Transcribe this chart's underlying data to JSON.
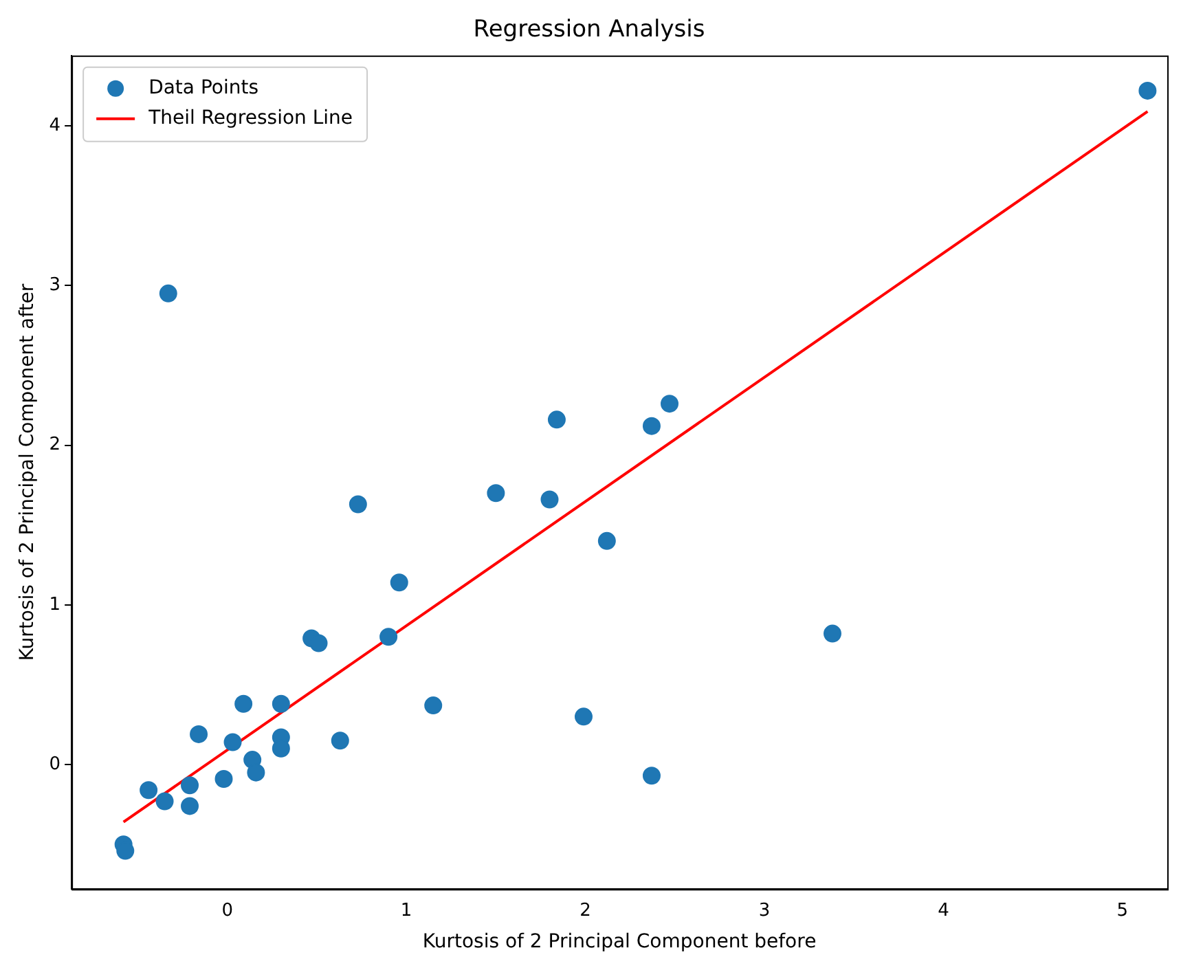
{
  "chart_data": {
    "type": "scatter",
    "title": "Regression Analysis",
    "xlabel": "Kurtosis of 2 Principal Component before",
    "ylabel": "Kurtosis of 2 Principal Component after",
    "xlim": [
      -0.87,
      5.25
    ],
    "ylim": [
      -0.78,
      4.44
    ],
    "xticks": [
      0,
      1,
      2,
      3,
      4,
      5
    ],
    "yticks": [
      0,
      1,
      2,
      3,
      4
    ],
    "grid": false,
    "legend": "top left",
    "series": [
      {
        "name": "Data Points",
        "type": "scatter",
        "color": "#1f77b4",
        "marker": "circle",
        "x": [
          -0.58,
          -0.57,
          -0.44,
          -0.35,
          -0.33,
          -0.21,
          -0.21,
          -0.16,
          -0.02,
          0.03,
          0.09,
          0.14,
          0.16,
          0.3,
          0.3,
          0.3,
          0.47,
          0.51,
          0.63,
          0.73,
          0.9,
          0.96,
          1.15,
          1.5,
          1.8,
          1.84,
          1.99,
          2.12,
          2.37,
          2.37,
          2.47,
          3.38,
          5.14
        ],
        "values": [
          -0.5,
          -0.54,
          -0.16,
          -0.23,
          2.95,
          -0.13,
          -0.26,
          0.19,
          -0.09,
          0.14,
          0.38,
          0.03,
          -0.05,
          0.38,
          0.17,
          0.1,
          0.79,
          0.76,
          0.15,
          1.63,
          0.8,
          1.14,
          0.37,
          1.7,
          1.66,
          2.16,
          0.3,
          1.4,
          2.12,
          -0.07,
          2.26,
          0.82,
          4.22
        ]
      },
      {
        "name": "Theil Regression Line",
        "type": "line",
        "color": "#ff0000",
        "marker": "none",
        "line_style": "solid",
        "x": [
          -0.58,
          5.14
        ],
        "values": [
          -0.36,
          4.09
        ]
      }
    ]
  }
}
